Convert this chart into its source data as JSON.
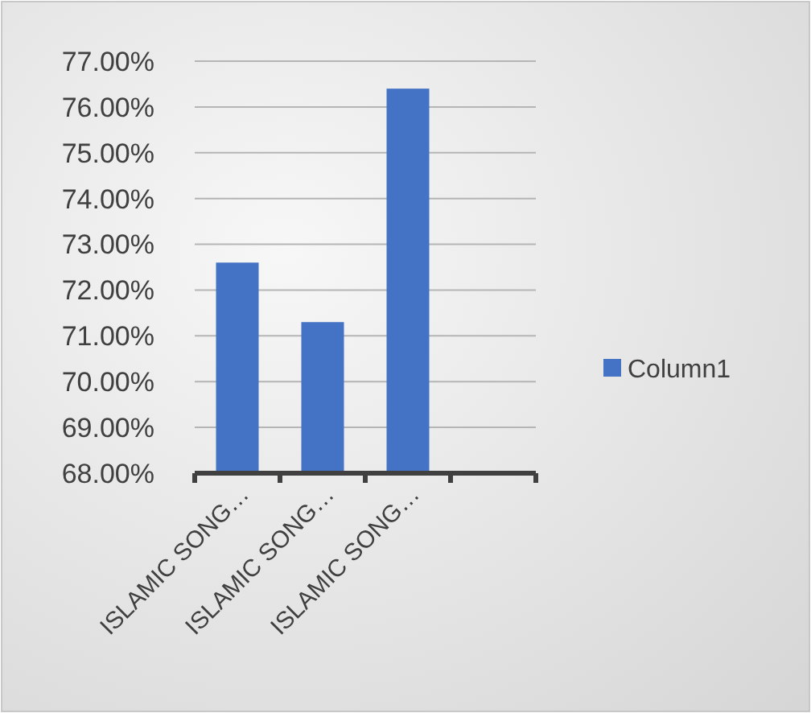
{
  "chart_data": {
    "type": "bar",
    "categories": [
      "ISLAMIC SONG…",
      "ISLAMIC SONG…",
      "ISLAMIC SONG…",
      null
    ],
    "series": [
      {
        "name": "Column1",
        "color": "#4472c4",
        "values": [
          72.6,
          71.3,
          76.4,
          null
        ]
      }
    ],
    "ylim": [
      68,
      77
    ],
    "yticks": [
      {
        "value": 68,
        "label": "68.00%"
      },
      {
        "value": 69,
        "label": "69.00%"
      },
      {
        "value": 70,
        "label": "70.00%"
      },
      {
        "value": 71,
        "label": "71.00%"
      },
      {
        "value": 72,
        "label": "72.00%"
      },
      {
        "value": 73,
        "label": "73.00%"
      },
      {
        "value": 74,
        "label": "74.00%"
      },
      {
        "value": 75,
        "label": "75.00%"
      },
      {
        "value": 76,
        "label": "76.00%"
      },
      {
        "value": 77,
        "label": "77.00%"
      }
    ],
    "grid": "y",
    "legend": "right"
  }
}
